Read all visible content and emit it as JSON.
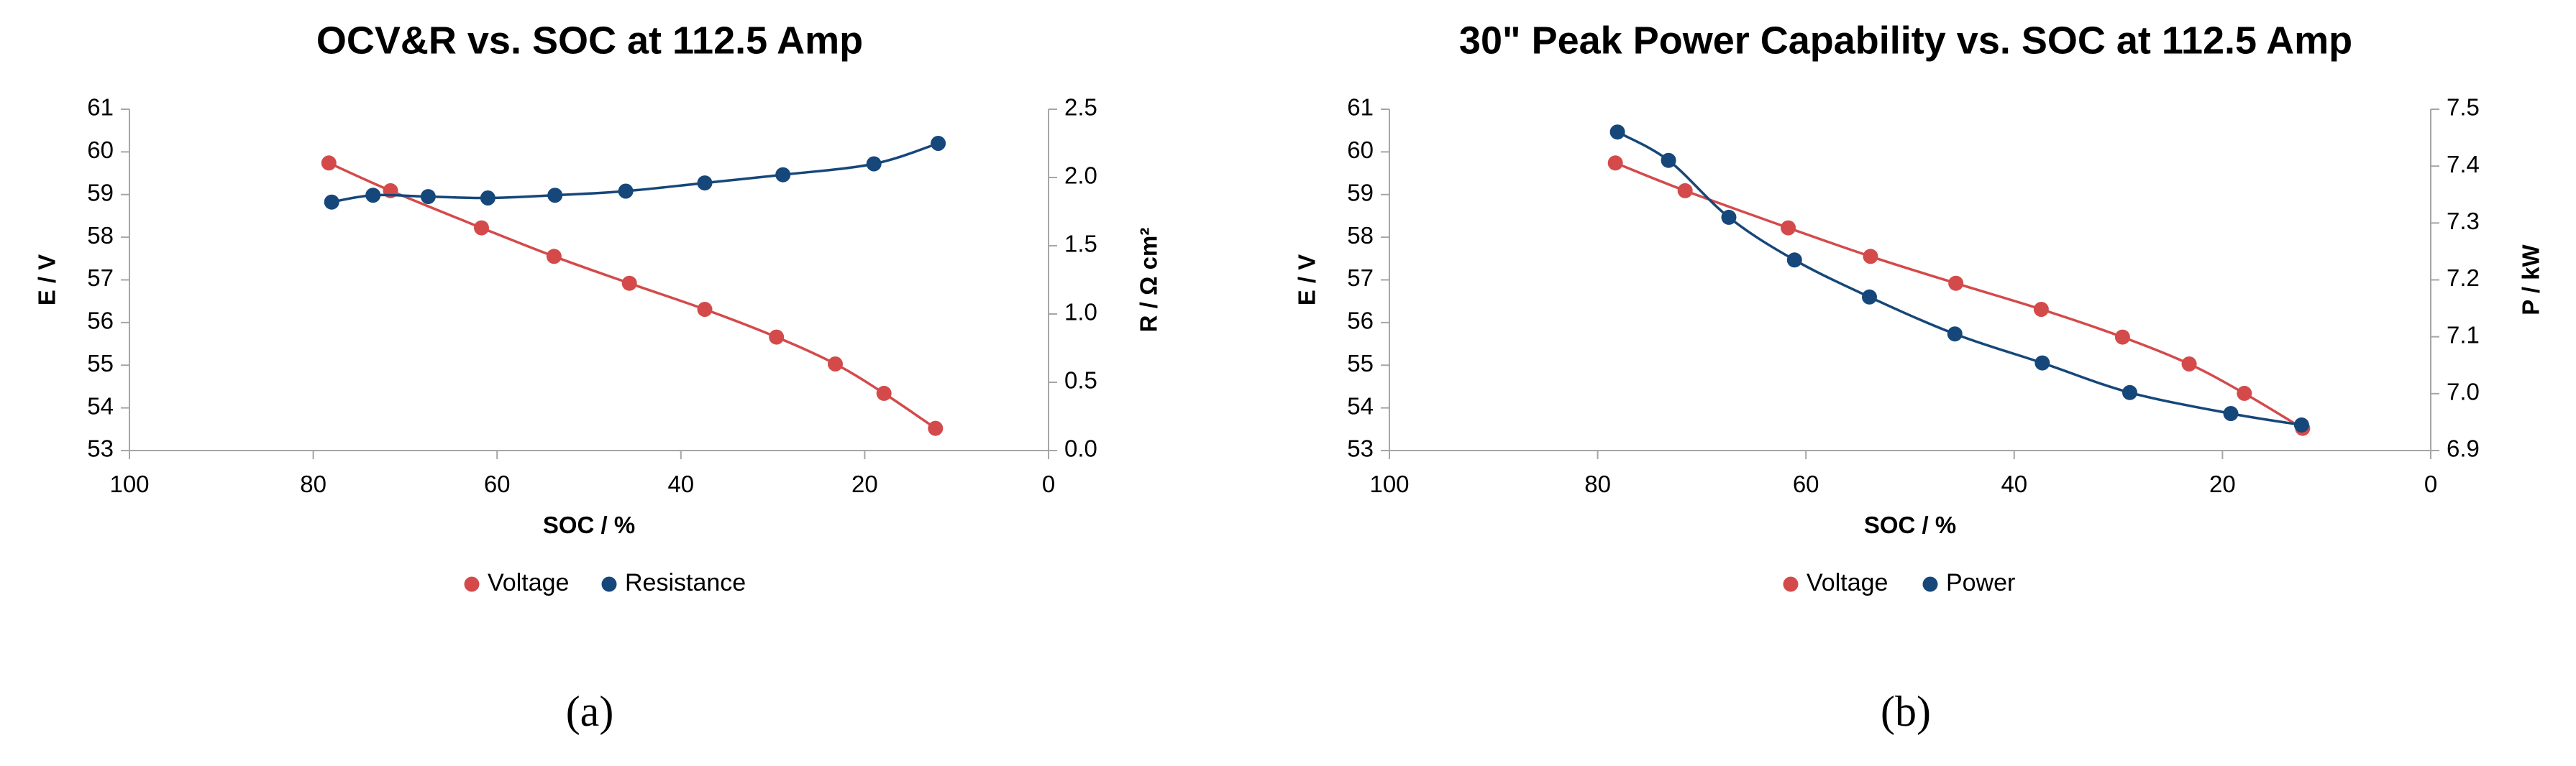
{
  "chart_data": [
    {
      "type": "scatter",
      "title": "OCV&R vs. SOC at 112.5 Amp",
      "caption": "(a)",
      "xlabel": "SOC / %",
      "ylabel": "E / V",
      "y2label": "R / Ω cm²",
      "xlim": [
        100,
        0
      ],
      "xticks": [
        100,
        80,
        60,
        40,
        20,
        0
      ],
      "ylim": [
        53,
        61
      ],
      "yticks": [
        53,
        54,
        55,
        56,
        57,
        58,
        59,
        60,
        61
      ],
      "y2lim": [
        0,
        2.5
      ],
      "y2ticks": [
        "0.0",
        "0.5",
        "1.0",
        "1.5",
        "2.0",
        "2.5"
      ],
      "legend": "bottom",
      "series": [
        {
          "name": "Voltage",
          "axis": "left",
          "color": "#d44a4a",
          "x": [
            78.3,
            71.6,
            61.7,
            53.8,
            45.6,
            37.4,
            29.6,
            23.2,
            17.9,
            12.3
          ],
          "y": [
            59.74,
            59.09,
            58.22,
            57.55,
            56.92,
            56.31,
            55.66,
            55.03,
            54.34,
            53.52
          ]
        },
        {
          "name": "Resistance",
          "axis": "right",
          "color": "#16477a",
          "x": [
            78.0,
            73.5,
            67.5,
            61.0,
            53.7,
            46.0,
            37.4,
            28.9,
            19.0,
            12.0
          ],
          "y": [
            1.82,
            1.87,
            1.86,
            1.85,
            1.87,
            1.9,
            1.96,
            2.02,
            2.1,
            2.25
          ]
        }
      ]
    },
    {
      "type": "scatter",
      "title": "30\" Peak Power Capability vs. SOC at 112.5 Amp",
      "caption": "(b)",
      "xlabel": "SOC / %",
      "ylabel": "E / V",
      "y2label": "P / kW",
      "xlim": [
        100,
        0
      ],
      "xticks": [
        100,
        80,
        60,
        40,
        20,
        0
      ],
      "ylim": [
        53,
        61
      ],
      "yticks": [
        53,
        54,
        55,
        56,
        57,
        58,
        59,
        60,
        61
      ],
      "y2lim": [
        6.9,
        7.5
      ],
      "y2ticks": [
        "6.9",
        "7.0",
        "7.1",
        "7.2",
        "7.3",
        "7.4",
        "7.5"
      ],
      "legend": "bottom",
      "series": [
        {
          "name": "Voltage",
          "axis": "left",
          "color": "#d44a4a",
          "x": [
            78.3,
            71.6,
            61.7,
            53.8,
            45.6,
            37.4,
            29.6,
            23.2,
            17.9,
            12.3
          ],
          "y": [
            59.74,
            59.09,
            58.22,
            57.55,
            56.92,
            56.31,
            55.66,
            55.03,
            54.34,
            53.52
          ]
        },
        {
          "name": "Power",
          "axis": "right",
          "color": "#16477a",
          "x": [
            78.1,
            73.2,
            67.4,
            61.1,
            53.9,
            45.7,
            37.3,
            28.9,
            19.2,
            12.4
          ],
          "y": [
            7.46,
            7.41,
            7.31,
            7.235,
            7.17,
            7.105,
            7.054,
            7.002,
            6.965,
            6.945
          ]
        }
      ]
    }
  ]
}
